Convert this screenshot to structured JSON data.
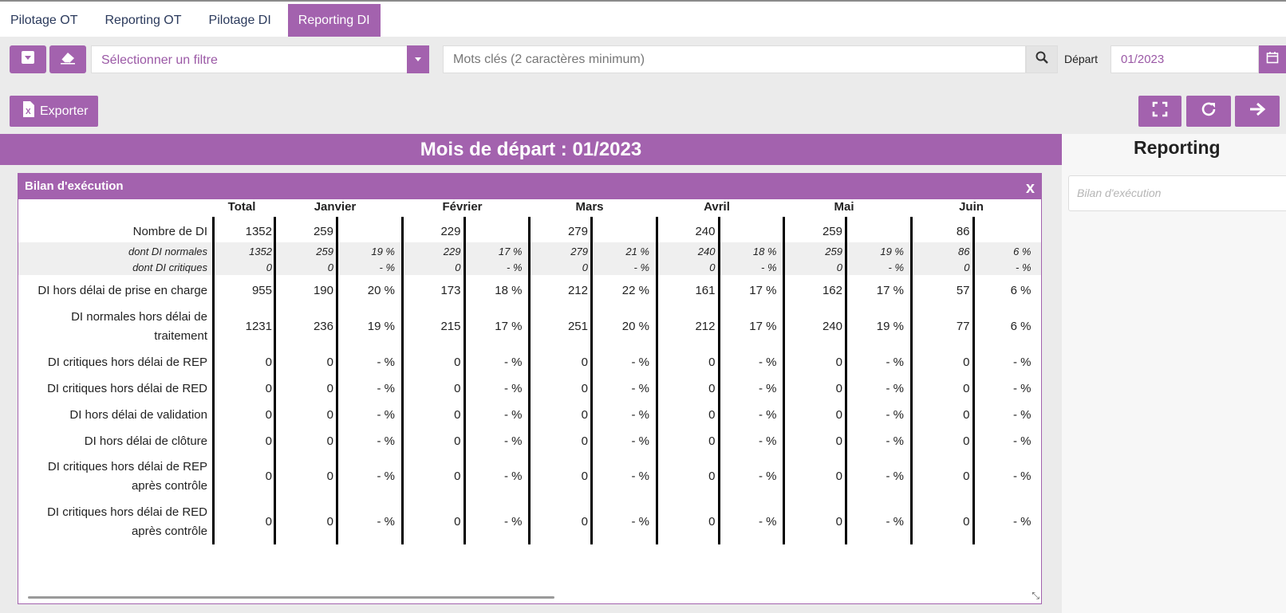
{
  "tabs": [
    {
      "label": "Pilotage OT",
      "active": false
    },
    {
      "label": "Reporting OT",
      "active": false
    },
    {
      "label": "Pilotage DI",
      "active": false
    },
    {
      "label": "Reporting DI",
      "active": true
    }
  ],
  "toolbar": {
    "filter_placeholder": "Sélectionner un filtre",
    "search_placeholder": "Mots clés (2 caractères minimum)",
    "depart_label": "Départ",
    "depart_value": "01/2023"
  },
  "actions": {
    "export_label": "Exporter"
  },
  "main": {
    "title": "Mois de départ : 01/2023",
    "panel_title": "Bilan d'exécution",
    "panel_close": "x"
  },
  "table": {
    "headers": [
      "Total",
      "Janvier",
      "Février",
      "Mars",
      "Avril",
      "Mai",
      "Juin"
    ],
    "rows": [
      {
        "label": "Nombre de DI",
        "total": "1352",
        "months": [
          [
            "259",
            ""
          ],
          [
            "229",
            ""
          ],
          [
            "279",
            ""
          ],
          [
            "240",
            ""
          ],
          [
            "259",
            ""
          ],
          [
            "86",
            ""
          ]
        ]
      },
      {
        "label": "dont DI normales",
        "sub": true,
        "total": "1352",
        "months": [
          [
            "259",
            "19 %"
          ],
          [
            "229",
            "17 %"
          ],
          [
            "279",
            "21 %"
          ],
          [
            "240",
            "18 %"
          ],
          [
            "259",
            "19 %"
          ],
          [
            "86",
            "6 %"
          ]
        ]
      },
      {
        "label": "dont DI critiques",
        "sub": true,
        "total": "0",
        "months": [
          [
            "0",
            "- %"
          ],
          [
            "0",
            "- %"
          ],
          [
            "0",
            "- %"
          ],
          [
            "0",
            "- %"
          ],
          [
            "0",
            "- %"
          ],
          [
            "0",
            "- %"
          ]
        ]
      },
      {
        "label": "DI hors délai de prise en charge",
        "total": "955",
        "months": [
          [
            "190",
            "20 %"
          ],
          [
            "173",
            "18 %"
          ],
          [
            "212",
            "22 %"
          ],
          [
            "161",
            "17 %"
          ],
          [
            "162",
            "17 %"
          ],
          [
            "57",
            "6 %"
          ]
        ]
      },
      {
        "label": "DI normales hors délai de traitement",
        "total": "1231",
        "months": [
          [
            "236",
            "19 %"
          ],
          [
            "215",
            "17 %"
          ],
          [
            "251",
            "20 %"
          ],
          [
            "212",
            "17 %"
          ],
          [
            "240",
            "19 %"
          ],
          [
            "77",
            "6 %"
          ]
        ]
      },
      {
        "label": "DI critiques hors délai de REP",
        "total": "0",
        "months": [
          [
            "0",
            "- %"
          ],
          [
            "0",
            "- %"
          ],
          [
            "0",
            "- %"
          ],
          [
            "0",
            "- %"
          ],
          [
            "0",
            "- %"
          ],
          [
            "0",
            "- %"
          ]
        ]
      },
      {
        "label": "DI critiques hors délai de RED",
        "total": "0",
        "months": [
          [
            "0",
            "- %"
          ],
          [
            "0",
            "- %"
          ],
          [
            "0",
            "- %"
          ],
          [
            "0",
            "- %"
          ],
          [
            "0",
            "- %"
          ],
          [
            "0",
            "- %"
          ]
        ]
      },
      {
        "label": "DI hors délai de validation",
        "total": "0",
        "months": [
          [
            "0",
            "- %"
          ],
          [
            "0",
            "- %"
          ],
          [
            "0",
            "- %"
          ],
          [
            "0",
            "- %"
          ],
          [
            "0",
            "- %"
          ],
          [
            "0",
            "- %"
          ]
        ]
      },
      {
        "label": "DI hors délai de clôture",
        "total": "0",
        "months": [
          [
            "0",
            "- %"
          ],
          [
            "0",
            "- %"
          ],
          [
            "0",
            "- %"
          ],
          [
            "0",
            "- %"
          ],
          [
            "0",
            "- %"
          ],
          [
            "0",
            "- %"
          ]
        ]
      },
      {
        "label": "DI critiques hors délai de REP après contrôle",
        "total": "0",
        "months": [
          [
            "0",
            "- %"
          ],
          [
            "0",
            "- %"
          ],
          [
            "0",
            "- %"
          ],
          [
            "0",
            "- %"
          ],
          [
            "0",
            "- %"
          ],
          [
            "0",
            "- %"
          ]
        ]
      },
      {
        "label": "DI critiques hors délai de RED après contrôle",
        "total": "0",
        "months": [
          [
            "0",
            "- %"
          ],
          [
            "0",
            "- %"
          ],
          [
            "0",
            "- %"
          ],
          [
            "0",
            "- %"
          ],
          [
            "0",
            "- %"
          ],
          [
            "0",
            "- %"
          ]
        ]
      }
    ]
  },
  "side": {
    "title": "Reporting",
    "select_placeholder": "Bilan d'exécution"
  },
  "colors": {
    "accent": "#a362ae",
    "toolbar_bg": "#ebebeb"
  }
}
